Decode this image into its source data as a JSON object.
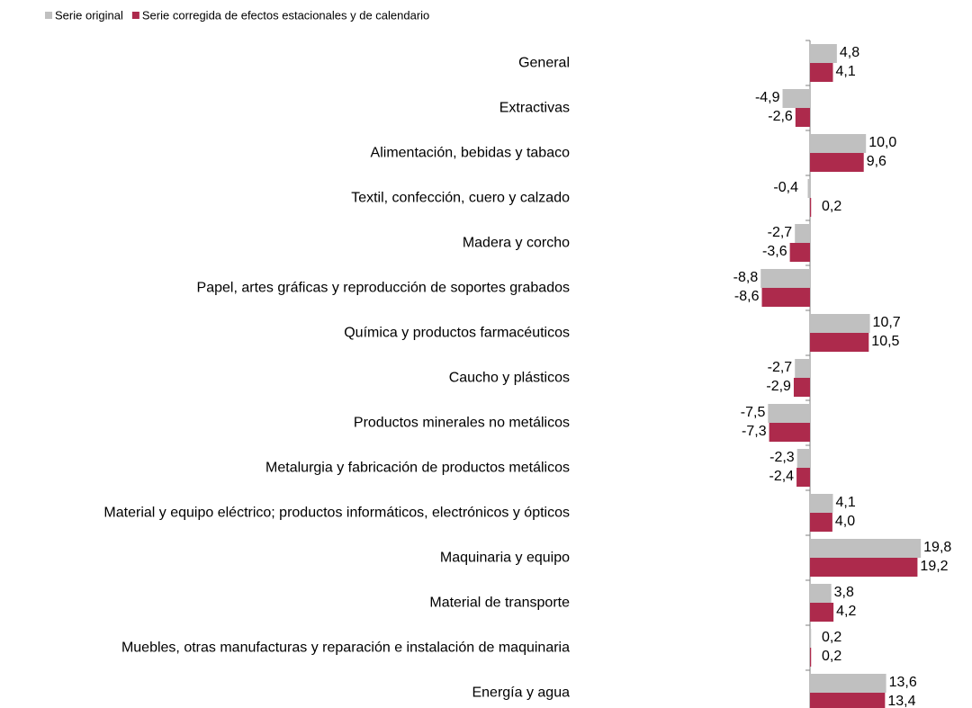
{
  "chart_data": {
    "type": "hbar",
    "legend": "top-left",
    "categories": [
      "General",
      "Extractivas",
      "Alimentación, bebidas y tabaco",
      "Textil, confección, cuero y calzado",
      "Madera y corcho",
      "Papel, artes gráficas y reproducción de soportes grabados",
      "Química y productos farmacéuticos",
      "Caucho y plásticos",
      "Productos minerales no metálicos",
      "Metalurgia y fabricación de productos metálicos",
      "Material y equipo eléctrico; productos informáticos, electrónicos y ópticos",
      "Maquinaria y equipo",
      "Material de transporte",
      "Muebles, otras manufacturas y reparación e instalación de maquinaria",
      "Energía y agua"
    ],
    "series": [
      {
        "name": "Serie original",
        "color": "#c0c0c0",
        "values": [
          4.8,
          -4.9,
          10.0,
          -0.4,
          -2.7,
          -8.8,
          10.7,
          -2.7,
          -7.5,
          -2.3,
          4.1,
          19.8,
          3.8,
          0.2,
          13.6
        ],
        "value_labels": [
          "4,8",
          "-4,9",
          "10,0",
          "-0,4",
          "-2,7",
          "-8,8",
          "10,7",
          "-2,7",
          "-7,5",
          "-2,3",
          "4,1",
          "19,8",
          "3,8",
          "0,2",
          "13,6"
        ]
      },
      {
        "name": "Serie corregida de efectos estacionales y de calendario",
        "color": "#ad2a4c",
        "values": [
          4.1,
          -2.6,
          9.6,
          0.2,
          -3.6,
          -8.6,
          10.5,
          -2.9,
          -7.3,
          -2.4,
          4.0,
          19.2,
          4.2,
          0.2,
          13.4
        ],
        "value_labels": [
          "4,1",
          "-2,6",
          "9,6",
          "0,2",
          "-3,6",
          "-8,6",
          "10,5",
          "-2,9",
          "-7,3",
          "-2,4",
          "4,0",
          "19,2",
          "4,2",
          "0,2",
          "13,4"
        ]
      }
    ]
  }
}
